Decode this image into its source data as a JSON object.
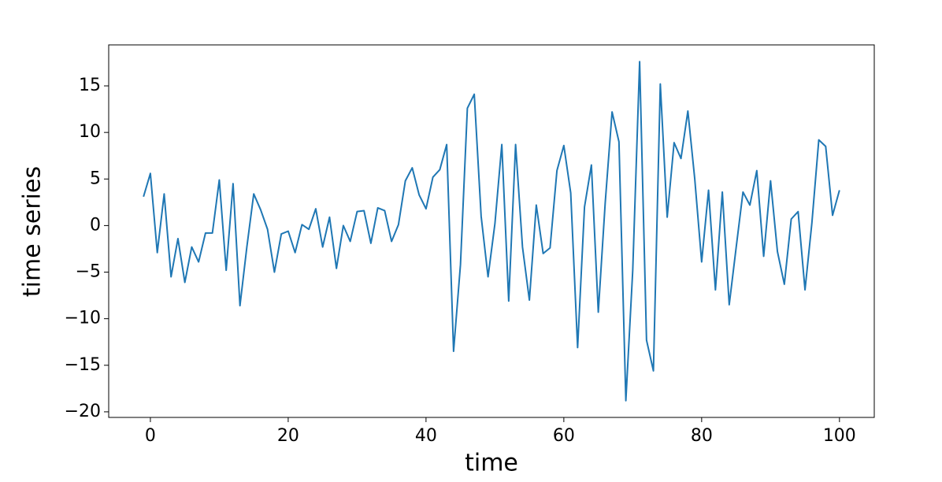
{
  "chart_data": {
    "type": "line",
    "x_label": "time",
    "y_label": "time series",
    "x": [
      -1,
      0,
      1,
      2,
      3,
      4,
      5,
      6,
      7,
      8,
      9,
      10,
      11,
      12,
      13,
      14,
      15,
      16,
      17,
      18,
      19,
      20,
      21,
      22,
      23,
      24,
      25,
      26,
      27,
      28,
      29,
      30,
      31,
      32,
      33,
      34,
      35,
      36,
      37,
      38,
      39,
      40,
      41,
      42,
      43,
      44,
      45,
      46,
      47,
      48,
      49,
      50,
      51,
      52,
      53,
      54,
      55,
      56,
      57,
      58,
      59,
      60,
      61,
      62,
      63,
      64,
      65,
      66,
      67,
      68,
      69,
      70,
      71,
      72,
      73,
      74,
      75,
      76,
      77,
      78,
      79,
      80,
      81,
      82,
      83,
      84,
      85,
      86,
      87,
      88,
      89,
      90,
      91,
      92,
      93,
      94,
      95,
      96,
      97,
      98,
      99,
      100
    ],
    "values": [
      3.1,
      5.6,
      -2.9,
      3.4,
      -5.5,
      -1.4,
      -6.1,
      -2.3,
      -3.9,
      -0.8,
      -0.8,
      4.9,
      -4.8,
      4.5,
      -8.6,
      -2.3,
      3.4,
      1.7,
      -0.4,
      -5.0,
      -0.9,
      -0.6,
      -2.9,
      0.1,
      -0.4,
      1.8,
      -2.3,
      0.9,
      -4.6,
      0.0,
      -1.7,
      1.5,
      1.6,
      -1.9,
      1.9,
      1.6,
      -1.7,
      0.1,
      4.8,
      6.2,
      3.3,
      1.8,
      5.2,
      6.0,
      8.7,
      -13.5,
      -4.2,
      12.6,
      14.1,
      1.0,
      -5.5,
      0.2,
      8.7,
      -8.1,
      8.7,
      -2.3,
      -8.0,
      2.2,
      -3.0,
      -2.4,
      5.9,
      8.6,
      3.5,
      -13.1,
      2.0,
      6.5,
      -9.3,
      2.4,
      12.2,
      9.0,
      -18.8,
      -4.8,
      17.6,
      -12.3,
      -15.6,
      15.2,
      0.9,
      8.9,
      7.2,
      12.3,
      5.0,
      -3.9,
      3.8,
      -6.9,
      3.6,
      -8.5,
      -2.4,
      3.6,
      2.2,
      5.9,
      -3.3,
      4.8,
      -2.8,
      -6.3,
      0.7,
      1.5,
      -6.9,
      0.3,
      9.2,
      8.5,
      1.1,
      3.8
    ],
    "color": "#1f77b4",
    "xlim": [
      -6.05,
      105.05
    ],
    "xticks": [
      0,
      20,
      40,
      60,
      80,
      100
    ],
    "ylim": [
      -20.6,
      19.4
    ],
    "yticks": [
      {
        "value": -20,
        "label": "−20"
      },
      {
        "value": -15,
        "label": "−15"
      },
      {
        "value": -10,
        "label": "−10"
      },
      {
        "value": -5,
        "label": "−5"
      },
      0,
      5,
      10,
      15
    ],
    "grid": false
  }
}
